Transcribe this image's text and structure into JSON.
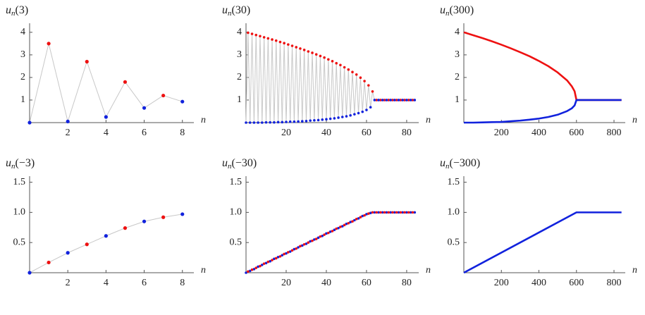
{
  "chart_data": [
    {
      "type": "scatter",
      "joined": true,
      "join_color": "#c8c8c8",
      "title": {
        "main": "u",
        "sub": "n",
        "arg": "(3)"
      },
      "xlabel": "n",
      "xlim": [
        0,
        8.6
      ],
      "ylim": [
        0,
        4.4
      ],
      "xticks": [
        2,
        4,
        6,
        8
      ],
      "yticks": [
        1,
        2,
        3,
        4
      ],
      "series": [
        {
          "color": "#ee1111",
          "x": [
            1,
            3,
            5,
            7
          ],
          "values": [
            3.5,
            2.7,
            1.8,
            1.2
          ]
        },
        {
          "color": "#1122dd",
          "x": [
            0,
            2,
            4,
            6,
            8
          ],
          "values": [
            0,
            0.05,
            0.25,
            0.65,
            0.93
          ]
        }
      ]
    },
    {
      "type": "scatter",
      "joined": true,
      "join_color": "#c8c8c8",
      "title": {
        "main": "u",
        "sub": "n",
        "arg": "(30)"
      },
      "xlabel": "n",
      "xlim": [
        0,
        86
      ],
      "ylim": [
        0,
        4.4
      ],
      "xticks": [
        20,
        40,
        60,
        80
      ],
      "yticks": [
        1,
        2,
        3,
        4
      ],
      "series": [
        {
          "color": "#ee1111",
          "x": [
            1,
            3,
            5,
            7,
            9,
            11,
            13,
            15,
            17,
            19,
            21,
            23,
            25,
            27,
            29,
            31,
            33,
            35,
            37,
            39,
            41,
            43,
            45,
            47,
            49,
            51,
            53,
            55,
            57,
            59,
            61,
            63,
            65,
            67,
            69,
            71,
            73,
            75,
            77,
            79,
            81,
            83
          ],
          "values": [
            3.98,
            3.93,
            3.88,
            3.83,
            3.78,
            3.73,
            3.68,
            3.63,
            3.57,
            3.52,
            3.46,
            3.4,
            3.34,
            3.28,
            3.22,
            3.15,
            3.09,
            3.02,
            2.95,
            2.88,
            2.8,
            2.72,
            2.63,
            2.55,
            2.45,
            2.35,
            2.24,
            2.13,
            1.99,
            1.84,
            1.65,
            1.38,
            1,
            1,
            1,
            1,
            1,
            1,
            1,
            1,
            1,
            1
          ]
        },
        {
          "color": "#1122dd",
          "x": [
            0,
            2,
            4,
            6,
            8,
            10,
            12,
            14,
            16,
            18,
            20,
            22,
            24,
            26,
            28,
            30,
            32,
            34,
            36,
            38,
            40,
            42,
            44,
            46,
            48,
            50,
            52,
            54,
            56,
            58,
            60,
            62,
            64,
            66,
            68,
            70,
            72,
            74,
            76,
            78,
            80,
            82,
            84
          ],
          "values": [
            0,
            0,
            0,
            0,
            0,
            0.01,
            0.01,
            0.01,
            0.02,
            0.02,
            0.03,
            0.04,
            0.04,
            0.05,
            0.06,
            0.07,
            0.09,
            0.1,
            0.11,
            0.13,
            0.15,
            0.17,
            0.19,
            0.22,
            0.25,
            0.28,
            0.32,
            0.37,
            0.42,
            0.48,
            0.56,
            0.68,
            1,
            1,
            1,
            1,
            1,
            1,
            1,
            1,
            1,
            1,
            1
          ]
        }
      ]
    },
    {
      "type": "line",
      "title": {
        "main": "u",
        "sub": "n",
        "arg": "(300)"
      },
      "xlabel": "n",
      "xlim": [
        0,
        860
      ],
      "ylim": [
        0,
        4.4
      ],
      "xticks": [
        200,
        400,
        600,
        800
      ],
      "yticks": [
        1,
        2,
        3,
        4
      ],
      "series": [
        {
          "color": "#ee1111",
          "x": [
            0,
            50,
            100,
            150,
            200,
            250,
            300,
            350,
            400,
            450,
            500,
            550,
            575,
            590,
            600,
            700,
            840
          ],
          "values": [
            4,
            3.87,
            3.74,
            3.6,
            3.45,
            3.29,
            3.12,
            2.94,
            2.73,
            2.5,
            2.22,
            1.87,
            1.61,
            1.39,
            1,
            1,
            1
          ]
        },
        {
          "color": "#1122dd",
          "x": [
            0,
            50,
            100,
            150,
            200,
            250,
            300,
            350,
            400,
            450,
            500,
            550,
            575,
            590,
            600,
            700,
            840
          ],
          "values": [
            0,
            0,
            0.01,
            0.02,
            0.03,
            0.06,
            0.09,
            0.13,
            0.18,
            0.25,
            0.35,
            0.51,
            0.63,
            0.76,
            1,
            1,
            1
          ]
        }
      ]
    },
    {
      "type": "scatter",
      "joined": true,
      "join_color": "#c8c8c8",
      "title": {
        "main": "u",
        "sub": "n",
        "arg": "(−3)"
      },
      "xlabel": "n",
      "xlim": [
        0,
        8.6
      ],
      "ylim": [
        0,
        1.6
      ],
      "xticks": [
        2,
        4,
        6,
        8
      ],
      "yticks": [
        0.5,
        {
          "value": 1,
          "label": "1.0"
        },
        1.5
      ],
      "series": [
        {
          "color": "#ee1111",
          "x": [
            1,
            3,
            5,
            7
          ],
          "values": [
            0.17,
            0.47,
            0.74,
            0.92
          ]
        },
        {
          "color": "#1122dd",
          "x": [
            0,
            2,
            4,
            6,
            8
          ],
          "values": [
            0,
            0.33,
            0.61,
            0.85,
            0.97
          ]
        }
      ]
    },
    {
      "type": "scatter",
      "joined": true,
      "join_color": "#1122dd",
      "title": {
        "main": "u",
        "sub": "n",
        "arg": "(−30)"
      },
      "xlabel": "n",
      "xlim": [
        0,
        86
      ],
      "ylim": [
        0,
        1.6
      ],
      "xticks": [
        20,
        40,
        60,
        80
      ],
      "yticks": [
        0.5,
        {
          "value": 1,
          "label": "1.0"
        },
        1.5
      ],
      "series": [
        {
          "color": "#1122dd",
          "x": [
            0,
            2,
            4,
            6,
            8,
            10,
            12,
            14,
            16,
            18,
            20,
            22,
            24,
            26,
            28,
            30,
            32,
            34,
            36,
            38,
            40,
            42,
            44,
            46,
            48,
            50,
            52,
            54,
            56,
            58,
            60,
            62,
            64,
            66,
            68,
            70,
            72,
            74,
            76,
            78,
            80,
            82,
            84
          ],
          "values": [
            0,
            0.03,
            0.06,
            0.1,
            0.13,
            0.16,
            0.19,
            0.23,
            0.26,
            0.29,
            0.32,
            0.35,
            0.39,
            0.42,
            0.45,
            0.48,
            0.52,
            0.55,
            0.58,
            0.61,
            0.65,
            0.68,
            0.71,
            0.74,
            0.77,
            0.81,
            0.84,
            0.87,
            0.9,
            0.94,
            0.97,
            0.99,
            1,
            1,
            1,
            1,
            1,
            1,
            1,
            1,
            1,
            1,
            1
          ]
        },
        {
          "color": "#ee1111",
          "x": [
            1,
            3,
            5,
            7,
            9,
            11,
            13,
            15,
            17,
            19,
            21,
            23,
            25,
            27,
            29,
            31,
            33,
            35,
            37,
            39,
            41,
            43,
            45,
            47,
            49,
            51,
            53,
            55,
            57,
            59,
            61,
            63,
            65,
            67,
            69,
            71,
            73,
            75,
            77,
            79,
            81,
            83
          ],
          "values": [
            0.02,
            0.05,
            0.08,
            0.11,
            0.15,
            0.18,
            0.21,
            0.24,
            0.27,
            0.31,
            0.34,
            0.37,
            0.4,
            0.44,
            0.47,
            0.5,
            0.53,
            0.56,
            0.6,
            0.63,
            0.66,
            0.69,
            0.73,
            0.76,
            0.79,
            0.82,
            0.85,
            0.89,
            0.92,
            0.95,
            0.98,
            1,
            1,
            1,
            1,
            1,
            1,
            1,
            1,
            1,
            1,
            1
          ]
        }
      ]
    },
    {
      "type": "line",
      "title": {
        "main": "u",
        "sub": "n",
        "arg": "(−300)"
      },
      "xlabel": "n",
      "xlim": [
        0,
        860
      ],
      "ylim": [
        0,
        1.6
      ],
      "xticks": [
        200,
        400,
        600,
        800
      ],
      "yticks": [
        0.5,
        {
          "value": 1,
          "label": "1.0"
        },
        1.5
      ],
      "series": [
        {
          "color": "#1122dd",
          "x": [
            0,
            600,
            840
          ],
          "values": [
            0,
            1,
            1
          ]
        }
      ]
    }
  ]
}
